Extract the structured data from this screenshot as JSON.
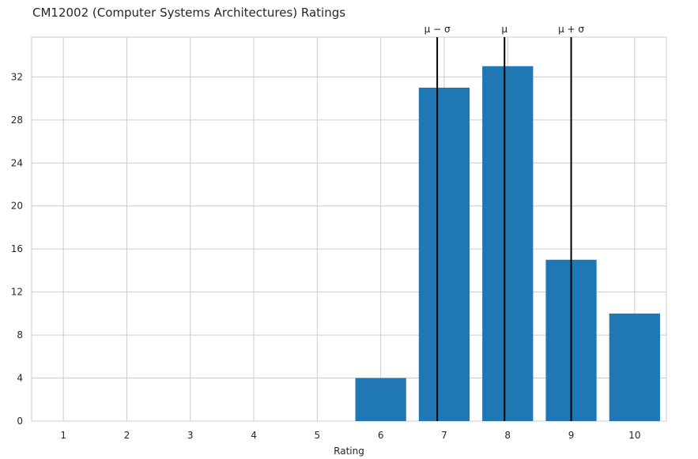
{
  "chart_data": {
    "type": "bar",
    "title": "CM12002 (Computer Systems Architectures) Ratings",
    "xlabel": "Rating",
    "ylabel": "",
    "categories": [
      1,
      2,
      3,
      4,
      5,
      6,
      7,
      8,
      9,
      10
    ],
    "values": [
      0,
      0,
      0,
      0,
      0,
      4,
      31,
      33,
      15,
      10
    ],
    "xlim": [
      0.5,
      10.5
    ],
    "ylim": [
      0,
      35.7
    ],
    "yticks": [
      0,
      4,
      8,
      12,
      16,
      20,
      24,
      28,
      32
    ],
    "grid": true,
    "bar_color": "#1f77b4",
    "vlines": [
      {
        "label": "μ − σ",
        "x": 6.89
      },
      {
        "label": "μ",
        "x": 7.95
      },
      {
        "label": "μ + σ",
        "x": 9.0
      }
    ],
    "vline_color": "#000000"
  }
}
